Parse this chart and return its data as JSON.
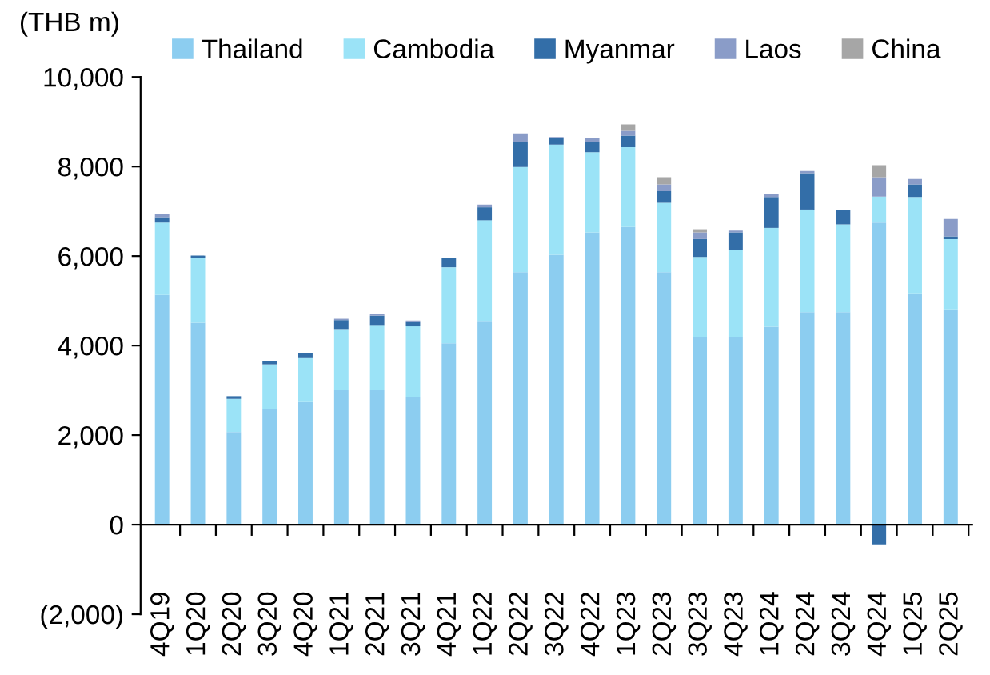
{
  "chart_data": {
    "type": "bar",
    "stacked": true,
    "ylabel": "(THB m)",
    "categories": [
      "4Q19",
      "1Q20",
      "2Q20",
      "3Q20",
      "4Q20",
      "1Q21",
      "2Q21",
      "3Q21",
      "4Q21",
      "1Q22",
      "2Q22",
      "3Q22",
      "4Q22",
      "1Q23",
      "2Q23",
      "3Q23",
      "4Q23",
      "1Q24",
      "2Q24",
      "3Q24",
      "4Q24",
      "1Q25",
      "2Q25"
    ],
    "series": [
      {
        "name": "Thailand",
        "color": "#8ccdf0",
        "values": [
          5130,
          4510,
          2070,
          2590,
          2740,
          3000,
          3000,
          2840,
          4050,
          4550,
          5640,
          6030,
          6530,
          6650,
          5640,
          4200,
          4200,
          4420,
          4750,
          4750,
          6750,
          5170,
          4810
        ]
      },
      {
        "name": "Cambodia",
        "color": "#9be3f7",
        "values": [
          1620,
          1450,
          740,
          990,
          980,
          1370,
          1460,
          1590,
          1700,
          2250,
          2350,
          2460,
          1790,
          1780,
          1550,
          1780,
          1930,
          2210,
          2290,
          1960,
          580,
          2150,
          1570
        ]
      },
      {
        "name": "Myanmar",
        "color": "#336ea8",
        "values": [
          120,
          50,
          60,
          70,
          110,
          200,
          210,
          110,
          210,
          290,
          550,
          150,
          230,
          260,
          260,
          400,
          400,
          690,
          810,
          310,
          -440,
          280,
          60
        ]
      },
      {
        "name": "Laos",
        "color": "#8a9cc8",
        "values": [
          60,
          0,
          0,
          0,
          0,
          30,
          40,
          20,
          0,
          60,
          200,
          20,
          80,
          110,
          150,
          150,
          40,
          60,
          50,
          0,
          430,
          120,
          390
        ]
      },
      {
        "name": "China",
        "color": "#a6a6a6",
        "values": [
          0,
          0,
          0,
          0,
          0,
          0,
          0,
          0,
          0,
          null,
          null,
          0,
          null,
          140,
          160,
          70,
          0,
          0,
          0,
          0,
          270,
          0,
          null
        ]
      }
    ],
    "ylim": [
      -2000,
      10000
    ],
    "yticks": [
      {
        "value": -2000,
        "label": "(2,000)"
      },
      0,
      {
        "value": 2000,
        "label": "2,000"
      },
      {
        "value": 4000,
        "label": "4,000"
      },
      {
        "value": 6000,
        "label": "6,000"
      },
      {
        "value": 8000,
        "label": "8,000"
      },
      {
        "value": 10000,
        "label": "10,000"
      }
    ],
    "grid": false,
    "legend": "top"
  }
}
